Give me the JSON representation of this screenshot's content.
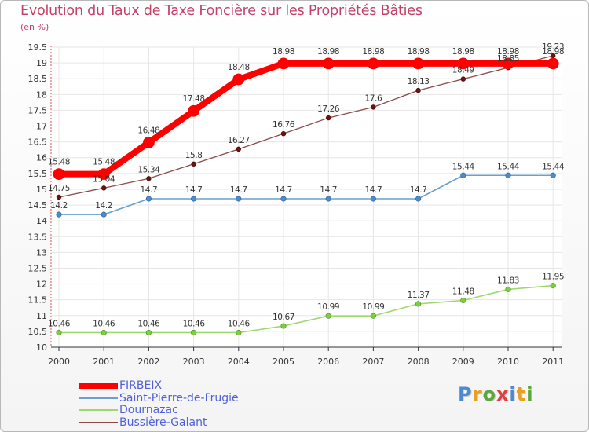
{
  "chart_data": {
    "type": "line",
    "title": "Evolution du Taux de Taxe Foncière sur les Propriétés Bâties",
    "subtitle": "(en %)",
    "xlabel": "",
    "ylabel": "(en %)",
    "categories": [
      "2000",
      "2001",
      "2002",
      "2003",
      "2004",
      "2005",
      "2006",
      "2007",
      "2008",
      "2009",
      "2010",
      "2011"
    ],
    "ylim": [
      10,
      19.5
    ],
    "yticks": [
      "10",
      "10.5",
      "11",
      "11.5",
      "12",
      "12.5",
      "13",
      "13.5",
      "14",
      "14.5",
      "15",
      "15.5",
      "16",
      "16.5",
      "17",
      "17.5",
      "18",
      "18.5",
      "19",
      "19.5"
    ],
    "grid": true,
    "legend_position": "bottom-left",
    "series": [
      {
        "name": "FIRBEIX",
        "color": "#ff0000",
        "values": [
          15.48,
          15.48,
          16.48,
          17.48,
          18.48,
          18.98,
          18.98,
          18.98,
          18.98,
          18.98,
          18.98,
          18.98
        ],
        "labels": [
          "15.48",
          "15.48",
          "16.48",
          "17.48",
          "18.48",
          "18.98",
          "18.98",
          "18.98",
          "18.98",
          "18.98",
          "18.98",
          "18.98"
        ]
      },
      {
        "name": "Saint-Pierre-de-Frugie",
        "color": "#6a9fd0",
        "values": [
          14.2,
          14.2,
          14.7,
          14.7,
          14.7,
          14.7,
          14.7,
          14.7,
          14.7,
          15.44,
          15.44,
          15.44
        ],
        "labels": [
          "14.2",
          "14.2",
          "14.7",
          "14.7",
          "14.7",
          "14.7",
          "14.7",
          "14.7",
          "14.7",
          "15.44",
          "15.44",
          "15.44"
        ]
      },
      {
        "name": "Dournazac",
        "color": "#a0d870",
        "values": [
          10.46,
          10.46,
          10.46,
          10.46,
          10.46,
          10.67,
          10.99,
          10.99,
          11.37,
          11.48,
          11.83,
          11.95
        ],
        "labels": [
          "10.46",
          "10.46",
          "10.46",
          "10.46",
          "10.46",
          "10.67",
          "10.99",
          "10.99",
          "11.37",
          "11.48",
          "11.83",
          "11.95"
        ]
      },
      {
        "name": "Bussière-Galant",
        "color": "#8c4a4a",
        "values": [
          14.75,
          15.04,
          15.34,
          15.8,
          16.27,
          16.76,
          17.26,
          17.6,
          18.13,
          18.49,
          18.85,
          19.23
        ],
        "labels": [
          "14.75",
          "15.04",
          "15.34",
          "15.8",
          "16.27",
          "16.76",
          "17.26",
          "17.6",
          "18.13",
          "18.49",
          "18.85",
          "19.23"
        ]
      }
    ]
  },
  "logo": {
    "text": "Proxiti",
    "letters": [
      {
        "ch": "P",
        "color": "#4a8ccf"
      },
      {
        "ch": "r",
        "color": "#e8a020"
      },
      {
        "ch": "o",
        "color": "#5aa83a"
      },
      {
        "ch": "x",
        "color": "#e14040"
      },
      {
        "ch": "i",
        "color": "#4a8ccf"
      },
      {
        "ch": "t",
        "color": "#e8a020"
      },
      {
        "ch": "i",
        "color": "#5aa83a"
      }
    ]
  }
}
